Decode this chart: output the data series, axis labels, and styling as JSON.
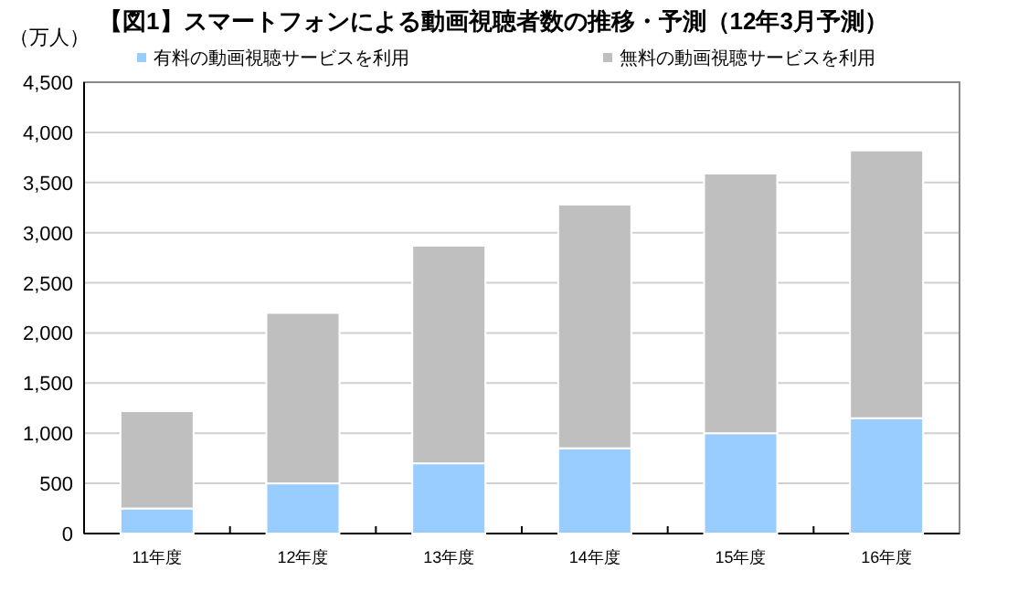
{
  "chart_data": {
    "type": "bar",
    "title": "【図1】スマートフォンによる動画視聴者数の推移・予測（12年3月予測）",
    "ylabel": "（万人）",
    "categories": [
      "11年度",
      "12年度",
      "13年度",
      "14年度",
      "15年度",
      "16年度"
    ],
    "stacked": true,
    "series": [
      {
        "name": "有料の動画視聴サービスを利用",
        "color": "#99ccff",
        "values": [
          250,
          500,
          700,
          850,
          1000,
          1150
        ]
      },
      {
        "name": "無料の動画視聴サービスを利用",
        "color": "#bfbfbf",
        "values": [
          970,
          1700,
          2170,
          2430,
          2590,
          2670
        ]
      }
    ],
    "ylim": [
      0,
      4500
    ],
    "yticks": [
      {
        "value": 0,
        "label": "0"
      },
      {
        "value": 500,
        "label": "500"
      },
      {
        "value": 1000,
        "label": "1,000"
      },
      {
        "value": 1500,
        "label": "1,500"
      },
      {
        "value": 2000,
        "label": "2,000"
      },
      {
        "value": 2500,
        "label": "2,500"
      },
      {
        "value": 3000,
        "label": "3,000"
      },
      {
        "value": 3500,
        "label": "3,500"
      },
      {
        "value": 4000,
        "label": "4,000"
      },
      {
        "value": 4500,
        "label": "4,500"
      }
    ],
    "grid": "y",
    "legend": "top"
  }
}
